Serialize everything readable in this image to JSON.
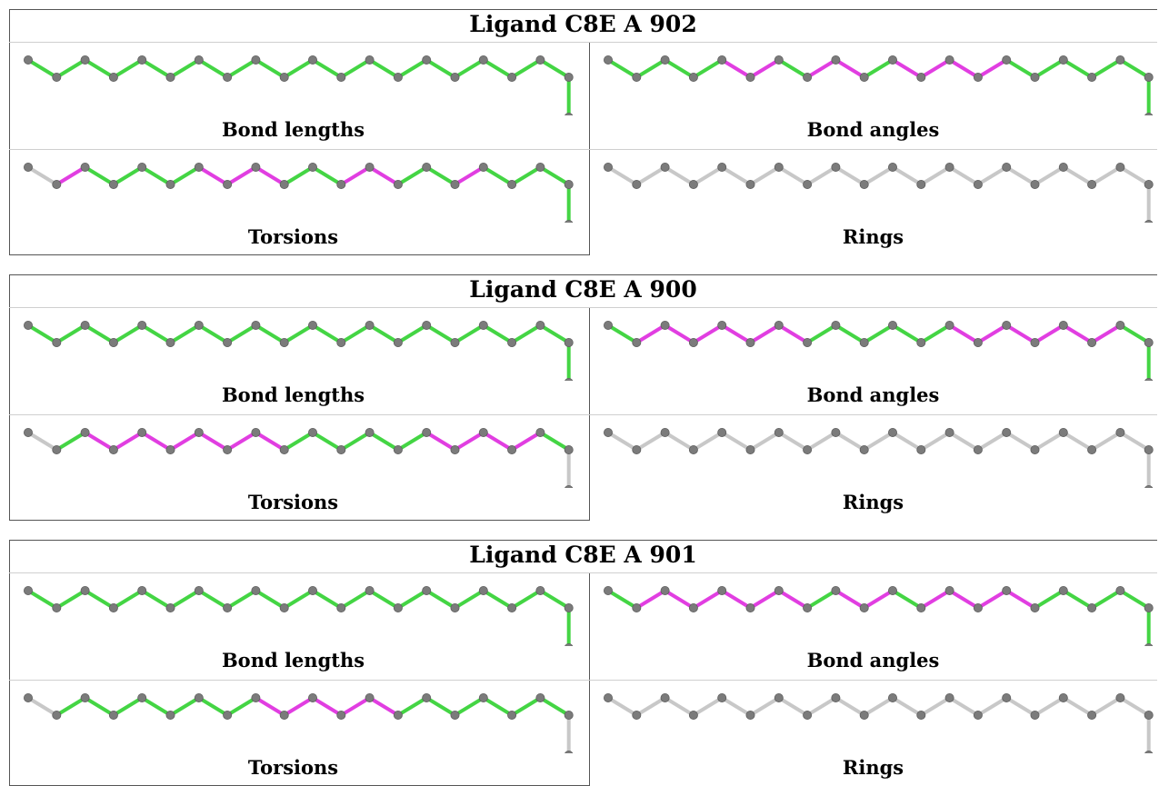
{
  "colors": {
    "pass": "#44d544",
    "outlier": "#e13ee1",
    "no_data": "#c8c8c8",
    "atom": "#7b7b7b",
    "frame": "#555555",
    "divider": "#cfcfcf"
  },
  "ligands": [
    {
      "title": "Ligand C8E A 902",
      "panels": [
        {
          "label": "Bond lengths",
          "bonds": [
            "pass",
            "pass",
            "pass",
            "pass",
            "pass",
            "pass",
            "pass",
            "pass",
            "pass",
            "pass",
            "pass",
            "pass",
            "pass",
            "pass",
            "pass",
            "pass",
            "pass",
            "pass",
            "pass",
            "pass"
          ]
        },
        {
          "label": "Bond angles",
          "bonds": [
            "pass",
            "pass",
            "pass",
            "pass",
            "outlier",
            "outlier",
            "pass",
            "outlier",
            "outlier",
            "pass",
            "outlier",
            "outlier",
            "outlier",
            "outlier",
            "pass",
            "pass",
            "pass",
            "pass",
            "pass",
            "pass"
          ]
        },
        {
          "label": "Torsions",
          "bonds": [
            "no_data",
            "outlier",
            "pass",
            "pass",
            "pass",
            "pass",
            "outlier",
            "outlier",
            "outlier",
            "pass",
            "pass",
            "outlier",
            "outlier",
            "pass",
            "pass",
            "outlier",
            "pass",
            "pass",
            "pass",
            "pass"
          ]
        },
        {
          "label": "Rings",
          "bonds": [
            "no_data",
            "no_data",
            "no_data",
            "no_data",
            "no_data",
            "no_data",
            "no_data",
            "no_data",
            "no_data",
            "no_data",
            "no_data",
            "no_data",
            "no_data",
            "no_data",
            "no_data",
            "no_data",
            "no_data",
            "no_data",
            "no_data",
            "no_data"
          ]
        }
      ]
    },
    {
      "title": "Ligand C8E A 900",
      "panels": [
        {
          "label": "Bond lengths",
          "bonds": [
            "pass",
            "pass",
            "pass",
            "pass",
            "pass",
            "pass",
            "pass",
            "pass",
            "pass",
            "pass",
            "pass",
            "pass",
            "pass",
            "pass",
            "pass",
            "pass",
            "pass",
            "pass",
            "pass",
            "pass"
          ]
        },
        {
          "label": "Bond angles",
          "bonds": [
            "pass",
            "outlier",
            "outlier",
            "outlier",
            "outlier",
            "outlier",
            "outlier",
            "pass",
            "pass",
            "pass",
            "pass",
            "pass",
            "outlier",
            "outlier",
            "outlier",
            "outlier",
            "outlier",
            "outlier",
            "pass",
            "pass"
          ]
        },
        {
          "label": "Torsions",
          "bonds": [
            "no_data",
            "pass",
            "outlier",
            "outlier",
            "outlier",
            "outlier",
            "outlier",
            "outlier",
            "outlier",
            "pass",
            "pass",
            "pass",
            "pass",
            "pass",
            "outlier",
            "outlier",
            "outlier",
            "outlier",
            "pass",
            "no_data"
          ]
        },
        {
          "label": "Rings",
          "bonds": [
            "no_data",
            "no_data",
            "no_data",
            "no_data",
            "no_data",
            "no_data",
            "no_data",
            "no_data",
            "no_data",
            "no_data",
            "no_data",
            "no_data",
            "no_data",
            "no_data",
            "no_data",
            "no_data",
            "no_data",
            "no_data",
            "no_data",
            "no_data"
          ]
        }
      ]
    },
    {
      "title": "Ligand C8E A 901",
      "panels": [
        {
          "label": "Bond lengths",
          "bonds": [
            "pass",
            "pass",
            "pass",
            "pass",
            "pass",
            "pass",
            "pass",
            "pass",
            "pass",
            "pass",
            "pass",
            "pass",
            "pass",
            "pass",
            "pass",
            "pass",
            "pass",
            "pass",
            "pass",
            "pass"
          ]
        },
        {
          "label": "Bond angles",
          "bonds": [
            "pass",
            "outlier",
            "outlier",
            "outlier",
            "outlier",
            "outlier",
            "outlier",
            "pass",
            "outlier",
            "outlier",
            "pass",
            "outlier",
            "outlier",
            "outlier",
            "outlier",
            "pass",
            "pass",
            "pass",
            "pass",
            "pass"
          ]
        },
        {
          "label": "Torsions",
          "bonds": [
            "no_data",
            "pass",
            "pass",
            "pass",
            "pass",
            "pass",
            "pass",
            "pass",
            "outlier",
            "outlier",
            "outlier",
            "outlier",
            "outlier",
            "pass",
            "pass",
            "pass",
            "pass",
            "pass",
            "pass",
            "no_data"
          ]
        },
        {
          "label": "Rings",
          "bonds": [
            "no_data",
            "no_data",
            "no_data",
            "no_data",
            "no_data",
            "no_data",
            "no_data",
            "no_data",
            "no_data",
            "no_data",
            "no_data",
            "no_data",
            "no_data",
            "no_data",
            "no_data",
            "no_data",
            "no_data",
            "no_data",
            "no_data",
            "no_data"
          ]
        }
      ]
    }
  ]
}
